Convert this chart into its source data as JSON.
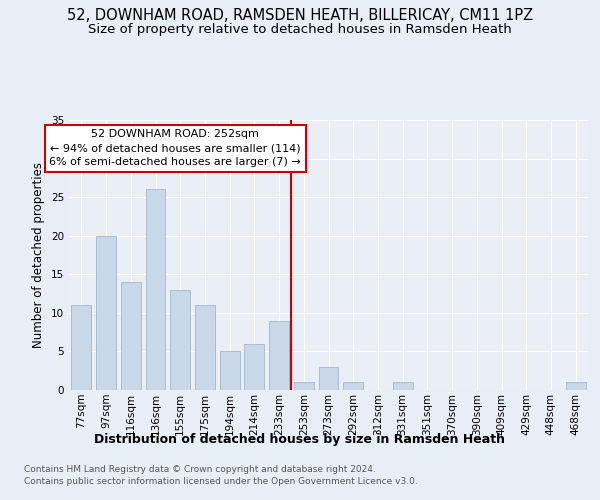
{
  "title1": "52, DOWNHAM ROAD, RAMSDEN HEATH, BILLERICAY, CM11 1PZ",
  "title2": "Size of property relative to detached houses in Ramsden Heath",
  "xlabel": "Distribution of detached houses by size in Ramsden Heath",
  "ylabel": "Number of detached properties",
  "categories": [
    "77sqm",
    "97sqm",
    "116sqm",
    "136sqm",
    "155sqm",
    "175sqm",
    "194sqm",
    "214sqm",
    "233sqm",
    "253sqm",
    "273sqm",
    "292sqm",
    "312sqm",
    "331sqm",
    "351sqm",
    "370sqm",
    "390sqm",
    "409sqm",
    "429sqm",
    "448sqm",
    "468sqm"
  ],
  "values": [
    11,
    20,
    14,
    26,
    13,
    11,
    5,
    6,
    9,
    1,
    3,
    1,
    0,
    1,
    0,
    0,
    0,
    0,
    0,
    0,
    1
  ],
  "bar_color": "#c8d8e8",
  "bar_edgecolor": "#a0b8cc",
  "vline_x_idx": 8.5,
  "vline_color": "#cc0000",
  "annotation_text": "52 DOWNHAM ROAD: 252sqm\n← 94% of detached houses are smaller (114)\n6% of semi-detached houses are larger (7) →",
  "annotation_box_facecolor": "#ffffff",
  "annotation_box_edgecolor": "#cc0000",
  "ylim": [
    0,
    35
  ],
  "yticks": [
    0,
    5,
    10,
    15,
    20,
    25,
    30,
    35
  ],
  "bg_color": "#e8eef5",
  "plot_bg_color": "#eaeff5",
  "footer": "Contains HM Land Registry data © Crown copyright and database right 2024.\nContains public sector information licensed under the Open Government Licence v3.0.",
  "title1_fontsize": 10.5,
  "title2_fontsize": 9.5,
  "xlabel_fontsize": 9,
  "ylabel_fontsize": 8.5,
  "footer_fontsize": 6.5,
  "annot_fontsize": 8,
  "grid_color": "#ffffff",
  "tick_fontsize": 7.5
}
